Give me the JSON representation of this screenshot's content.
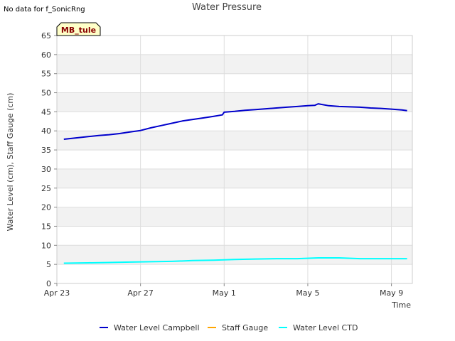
{
  "header": {
    "no_data_text": "No data for f_SonicRng",
    "site_badge": "MB_tule"
  },
  "chart_data": {
    "type": "line",
    "title": "Water Pressure",
    "xlabel": "Time",
    "ylabel": "Water Level (cm), Staff Gauge (cm)",
    "ylim": [
      0,
      65
    ],
    "yticks": [
      0,
      5,
      10,
      15,
      20,
      25,
      30,
      35,
      40,
      45,
      50,
      55,
      60,
      65
    ],
    "xlim": [
      "2024-04-23",
      "2024-05-10"
    ],
    "xticks": [
      {
        "date": "2024-04-23",
        "label": "Apr 23"
      },
      {
        "date": "2024-04-27",
        "label": "Apr 27"
      },
      {
        "date": "2024-05-01",
        "label": "May 1"
      },
      {
        "date": "2024-05-05",
        "label": "May 5"
      },
      {
        "date": "2024-05-09",
        "label": "May 9"
      }
    ],
    "grid": true,
    "legend_position": "bottom",
    "series": [
      {
        "name": "Water Level Campbell",
        "color": "#0000cc",
        "x": [
          "2024-04-23 08:00",
          "2024-04-24 00:00",
          "2024-04-24 12:00",
          "2024-04-25 00:00",
          "2024-04-25 12:00",
          "2024-04-26 00:00",
          "2024-04-26 12:00",
          "2024-04-27 00:00",
          "2024-04-27 12:00",
          "2024-04-28 00:00",
          "2024-04-28 12:00",
          "2024-04-29 00:00",
          "2024-04-29 12:00",
          "2024-04-30 00:00",
          "2024-04-30 12:00",
          "2024-04-30 22:00",
          "2024-05-01 00:00",
          "2024-05-01 12:00",
          "2024-05-02 00:00",
          "2024-05-02 12:00",
          "2024-05-03 00:00",
          "2024-05-03 12:00",
          "2024-05-04 00:00",
          "2024-05-04 12:00",
          "2024-05-05 00:00",
          "2024-05-05 08:00",
          "2024-05-05 12:00",
          "2024-05-06 00:00",
          "2024-05-06 12:00",
          "2024-05-07 00:00",
          "2024-05-07 12:00",
          "2024-05-08 00:00",
          "2024-05-08 12:00",
          "2024-05-09 00:00",
          "2024-05-09 12:00",
          "2024-05-09 18:00"
        ],
        "values": [
          37.8,
          38.2,
          38.5,
          38.8,
          39.0,
          39.3,
          39.7,
          40.1,
          40.8,
          41.4,
          42.0,
          42.6,
          43.0,
          43.4,
          43.8,
          44.2,
          44.9,
          45.1,
          45.4,
          45.6,
          45.8,
          46.0,
          46.2,
          46.4,
          46.6,
          46.7,
          47.1,
          46.6,
          46.4,
          46.3,
          46.2,
          46.0,
          45.9,
          45.7,
          45.5,
          45.3
        ]
      },
      {
        "name": "Staff Gauge",
        "color": "#ffa500",
        "x": [],
        "values": []
      },
      {
        "name": "Water Level CTD",
        "color": "#00ffff",
        "x": [
          "2024-04-23 08:00",
          "2024-04-24 12:00",
          "2024-04-25 12:00",
          "2024-04-26 12:00",
          "2024-04-27 12:00",
          "2024-04-28 12:00",
          "2024-04-29 12:00",
          "2024-04-30 12:00",
          "2024-05-01 12:00",
          "2024-05-02 12:00",
          "2024-05-03 12:00",
          "2024-05-04 12:00",
          "2024-05-05 12:00",
          "2024-05-06 12:00",
          "2024-05-07 12:00",
          "2024-05-08 12:00",
          "2024-05-09 18:00"
        ],
        "values": [
          5.3,
          5.4,
          5.5,
          5.6,
          5.7,
          5.8,
          6.0,
          6.1,
          6.3,
          6.4,
          6.5,
          6.5,
          6.7,
          6.7,
          6.5,
          6.5,
          6.5
        ]
      }
    ]
  }
}
